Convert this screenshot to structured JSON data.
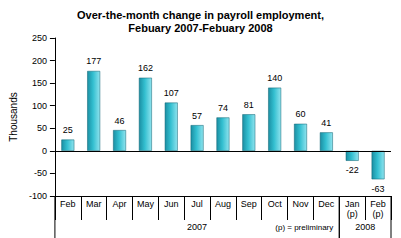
{
  "chart_data": {
    "type": "bar",
    "title": "Over-the-month change in payroll employment,\nFebuary 2007-Febuary 2008",
    "y_label": "Thousands",
    "categories": [
      "Feb",
      "Mar",
      "Apr",
      "May",
      "Jun",
      "Jul",
      "Aug",
      "Sep",
      "Oct",
      "Nov",
      "Dec",
      "Jan\n(p)",
      "Feb\n(p)"
    ],
    "values": [
      25,
      177,
      46,
      162,
      107,
      57,
      74,
      81,
      140,
      60,
      41,
      -22,
      -63
    ],
    "color": "#33bfd0",
    "ylim": [
      -100,
      250
    ],
    "yticks": [
      -100,
      -50,
      0,
      50,
      100,
      150,
      200,
      250
    ],
    "grid": false,
    "data_labels": true,
    "groups": [
      {
        "label": "2007",
        "span": 11
      },
      {
        "label": "2008",
        "span": 2
      }
    ],
    "note": "(p) = preliminary"
  }
}
